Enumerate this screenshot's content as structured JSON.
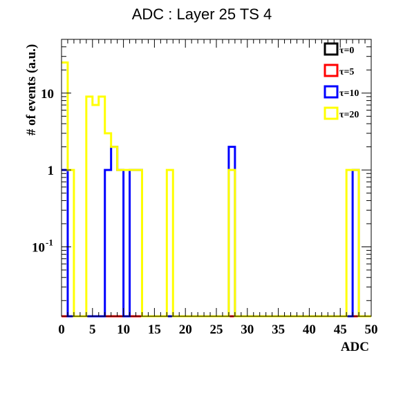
{
  "chart_data": {
    "type": "step",
    "title": "ADC : Layer 25 TS 4",
    "xlabel": "ADC",
    "ylabel": "# of events (a.u.)",
    "xlim": [
      0,
      50
    ],
    "ylim": [
      0.0125,
      50
    ],
    "yscale": "log",
    "xticks": [
      0,
      5,
      10,
      15,
      20,
      25,
      30,
      35,
      40,
      45,
      50
    ],
    "yticks": [
      {
        "value": 0.1,
        "base": "10",
        "exp": "-1"
      },
      {
        "value": 1,
        "base": "1",
        "exp": ""
      },
      {
        "value": 10,
        "base": "10",
        "exp": ""
      }
    ],
    "legend_position": "top-right",
    "series": [
      {
        "name": "τ=0",
        "color": "#000000",
        "bins": []
      },
      {
        "name": "τ=5",
        "color": "#ff0000",
        "bins": []
      },
      {
        "name": "τ=10",
        "color": "#0000ff",
        "bins": [
          [
            0,
            1
          ],
          [
            7,
            1
          ],
          [
            8,
            2
          ],
          [
            9,
            1
          ],
          [
            11,
            1
          ],
          [
            12,
            1
          ],
          [
            27,
            2
          ],
          [
            47,
            1
          ]
        ]
      },
      {
        "name": "τ=20",
        "color": "#ffff00",
        "bins": [
          [
            0,
            25
          ],
          [
            1,
            1
          ],
          [
            4,
            9
          ],
          [
            5,
            7
          ],
          [
            6,
            9
          ],
          [
            7,
            3
          ],
          [
            8,
            2
          ],
          [
            9,
            1
          ],
          [
            10,
            1
          ],
          [
            11,
            1
          ],
          [
            12,
            1
          ],
          [
            17,
            1
          ],
          [
            27,
            1
          ],
          [
            46,
            1
          ],
          [
            47,
            1
          ]
        ]
      }
    ]
  }
}
